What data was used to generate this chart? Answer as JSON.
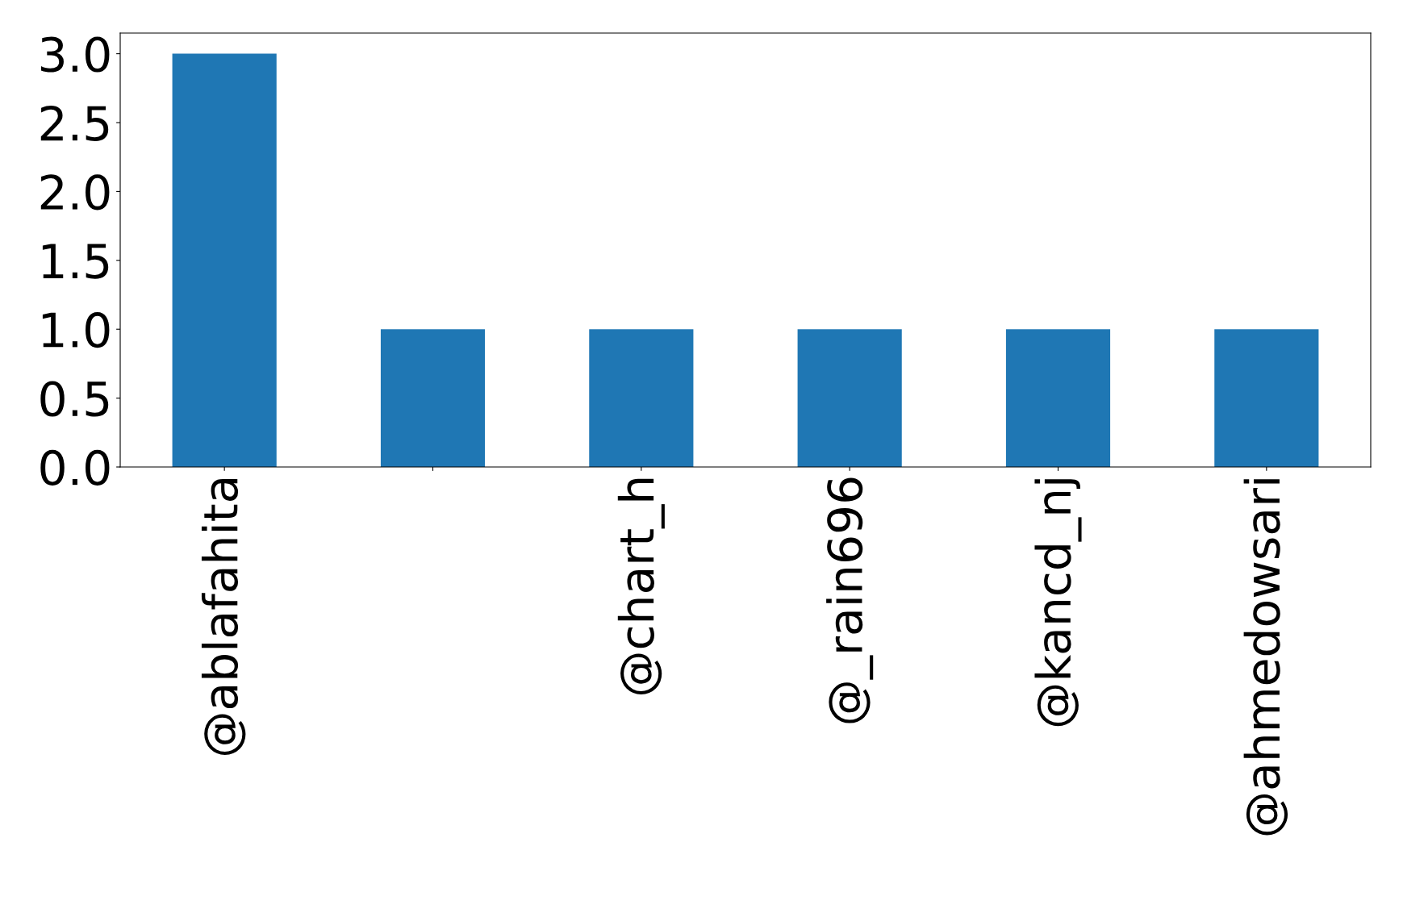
{
  "chart_data": {
    "type": "bar",
    "categories": [
      "@ablafahita",
      null,
      "@chart_h",
      "@_rain696",
      "@kancd_nj",
      "@ahmedowsari"
    ],
    "values": [
      3,
      1,
      1,
      1,
      1,
      1
    ],
    "color": "#1f77b4",
    "ylim": [
      0,
      3.15
    ],
    "yticks": [
      {
        "value": 0,
        "label": "0.0"
      },
      0.5,
      {
        "value": 1,
        "label": "1.0"
      },
      1.5,
      {
        "value": 2,
        "label": "2.0"
      },
      2.5,
      {
        "value": 3,
        "label": "3.0"
      }
    ],
    "grid": false
  }
}
